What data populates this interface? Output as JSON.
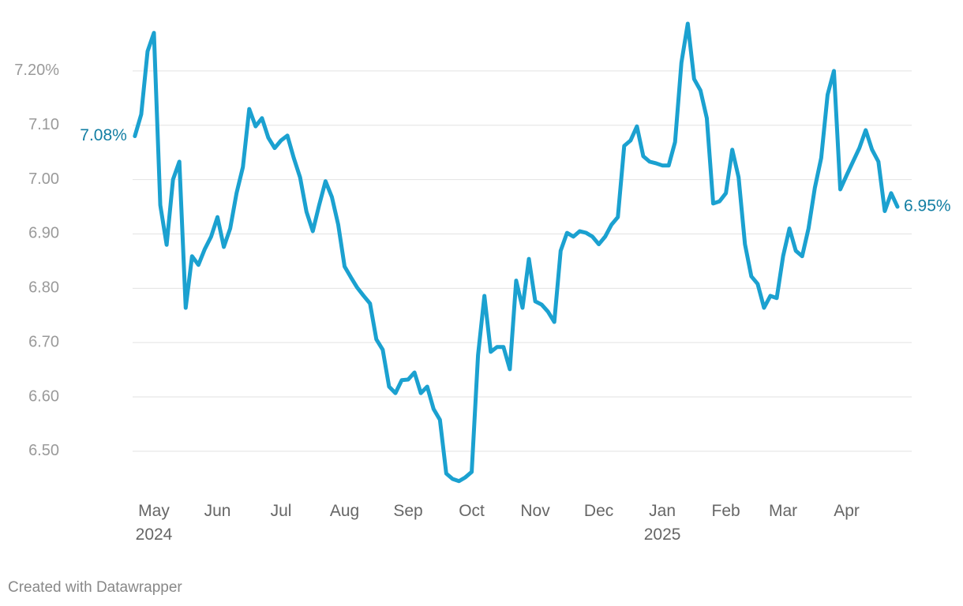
{
  "chart_data": {
    "type": "line",
    "categories": [
      null,
      null,
      null,
      "May 2024",
      null,
      null,
      null,
      null,
      null,
      null,
      null,
      null,
      null,
      "Jun",
      null,
      null,
      null,
      null,
      null,
      null,
      null,
      null,
      null,
      "Jul",
      null,
      null,
      null,
      null,
      null,
      null,
      null,
      null,
      null,
      "Aug",
      null,
      null,
      null,
      null,
      null,
      null,
      null,
      null,
      null,
      "Sep",
      null,
      null,
      null,
      null,
      null,
      null,
      null,
      null,
      null,
      "Oct",
      null,
      null,
      null,
      null,
      null,
      null,
      null,
      null,
      null,
      "Nov",
      null,
      null,
      null,
      null,
      null,
      null,
      null,
      null,
      null,
      "Dec",
      null,
      null,
      null,
      null,
      null,
      null,
      null,
      null,
      null,
      "Jan 2025",
      null,
      null,
      null,
      null,
      null,
      null,
      null,
      null,
      null,
      "Feb",
      null,
      null,
      null,
      null,
      null,
      null,
      null,
      null,
      "Mar",
      null,
      null,
      null,
      null,
      null,
      null,
      null,
      null,
      null,
      "Apr",
      null,
      null,
      null,
      null,
      null,
      null,
      null,
      null
    ],
    "values": [
      7.08,
      7.12,
      7.236,
      7.27,
      6.953,
      6.88,
      7.0,
      7.033,
      6.764,
      6.859,
      6.843,
      6.872,
      6.895,
      6.931,
      6.876,
      6.91,
      6.975,
      7.023,
      7.13,
      7.098,
      7.113,
      7.077,
      7.058,
      7.072,
      7.081,
      7.04,
      7.004,
      6.941,
      6.905,
      6.953,
      6.997,
      6.968,
      6.917,
      6.84,
      6.82,
      6.801,
      6.786,
      6.772,
      6.706,
      6.687,
      6.619,
      6.607,
      6.631,
      6.632,
      6.645,
      6.607,
      6.619,
      6.578,
      6.558,
      6.459,
      6.449,
      6.445,
      6.452,
      6.462,
      6.677,
      6.786,
      6.683,
      6.692,
      6.692,
      6.651,
      6.814,
      6.764,
      6.854,
      6.776,
      6.77,
      6.757,
      6.738,
      6.869,
      6.902,
      6.895,
      6.905,
      6.902,
      6.895,
      6.881,
      6.895,
      6.917,
      6.931,
      7.062,
      7.072,
      7.098,
      7.043,
      7.033,
      7.03,
      7.026,
      7.026,
      7.069,
      7.215,
      7.287,
      7.185,
      7.164,
      7.113,
      6.956,
      6.96,
      6.975,
      7.055,
      7.004,
      6.881,
      6.822,
      6.808,
      6.764,
      6.786,
      6.782,
      6.859,
      6.91,
      6.869,
      6.859,
      6.91,
      6.985,
      7.04,
      7.156,
      7.2,
      6.982,
      7.008,
      7.033,
      7.058,
      7.091,
      7.055,
      7.033,
      6.942,
      6.975,
      6.95
    ],
    "value_labels": [
      "7.08%",
      null,
      null,
      null,
      null,
      null,
      null,
      null,
      null,
      null,
      null,
      null,
      null,
      null,
      null,
      null,
      null,
      null,
      null,
      null,
      null,
      null,
      null,
      null,
      null,
      null,
      null,
      null,
      null,
      null,
      null,
      null,
      null,
      null,
      null,
      null,
      null,
      null,
      null,
      null,
      null,
      null,
      null,
      null,
      null,
      null,
      null,
      null,
      null,
      null,
      null,
      null,
      null,
      null,
      null,
      null,
      null,
      null,
      null,
      null,
      null,
      null,
      null,
      null,
      null,
      null,
      null,
      null,
      null,
      null,
      null,
      null,
      null,
      null,
      null,
      null,
      null,
      null,
      null,
      null,
      null,
      null,
      null,
      null,
      null,
      null,
      null,
      null,
      null,
      null,
      null,
      null,
      null,
      null,
      null,
      null,
      null,
      null,
      null,
      null,
      null,
      null,
      null,
      null,
      null,
      null,
      null,
      null,
      null,
      null,
      null,
      null,
      null,
      null,
      null,
      null,
      null,
      null,
      null,
      null,
      "6.95%"
    ],
    "color": "#1ba1d0",
    "ylim": [
      6.42,
      7.3
    ],
    "yticks": [
      {
        "value": 6.5,
        "label": "6.50"
      },
      {
        "value": 6.6,
        "label": "6.60"
      },
      {
        "value": 6.7,
        "label": "6.70"
      },
      {
        "value": 6.8,
        "label": "6.80"
      },
      {
        "value": 6.9,
        "label": "6.90"
      },
      {
        "value": 7.0,
        "label": "7.00"
      },
      {
        "value": 7.1,
        "label": "7.10"
      },
      {
        "value": 7.2,
        "label": "7.20%"
      }
    ],
    "grid": true,
    "credit": "Created with Datawrapper"
  }
}
